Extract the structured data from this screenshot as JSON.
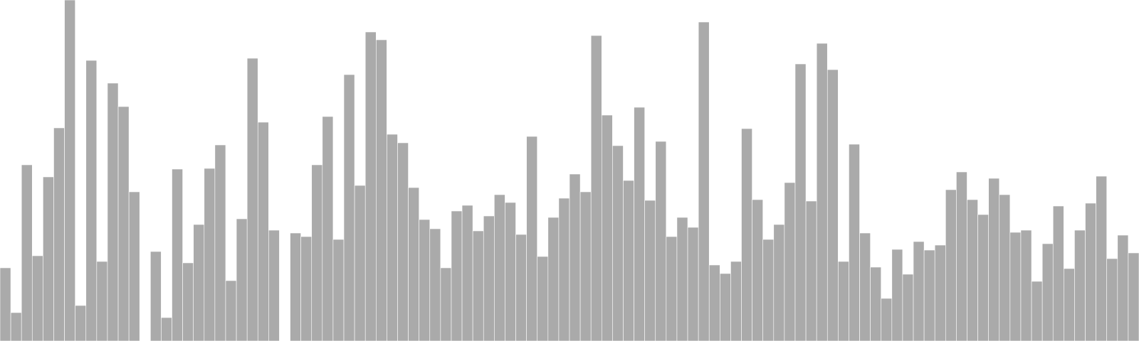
{
  "chart_data": {
    "type": "bar",
    "title": "",
    "xlabel": "",
    "ylabel": "",
    "ylim": [
      0,
      480
    ],
    "grid": false,
    "legend": "none",
    "bar_color": "#aaaaaa",
    "background": "#ffffff",
    "values": [
      103,
      40,
      248,
      120,
      231,
      300,
      480,
      50,
      395,
      112,
      363,
      330,
      210,
      0,
      126,
      33,
      242,
      110,
      164,
      243,
      276,
      85,
      172,
      398,
      308,
      156,
      0,
      152,
      147,
      248,
      316,
      143,
      375,
      219,
      435,
      424,
      291,
      279,
      216,
      171,
      158,
      103,
      183,
      191,
      155,
      176,
      206,
      195,
      150,
      288,
      119,
      174,
      201,
      235,
      210,
      430,
      318,
      275,
      226,
      329,
      198,
      281,
      147,
      174,
      160,
      449,
      107,
      95,
      112,
      299,
      199,
      143,
      164,
      223,
      390,
      197,
      419,
      382,
      112,
      277,
      152,
      104,
      60,
      129,
      94,
      140,
      128,
      135,
      213,
      238,
      199,
      178,
      229,
      206,
      153,
      156,
      84,
      137,
      190,
      102,
      156,
      194,
      232,
      116,
      149,
      124
    ]
  }
}
